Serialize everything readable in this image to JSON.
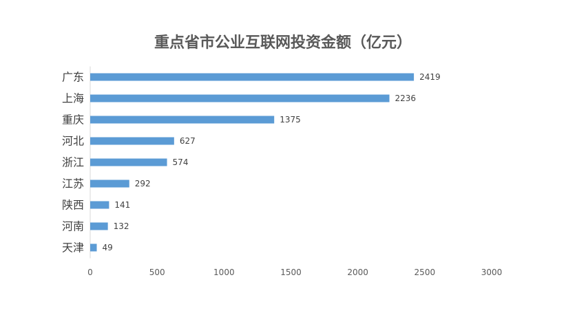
{
  "chart_data": {
    "type": "bar",
    "orientation": "horizontal",
    "title": "重点省市公业互联网投资金额（亿元）",
    "categories": [
      "广东",
      "上海",
      "重庆",
      "河北",
      "浙江",
      "江苏",
      "陕西",
      "河南",
      "天津"
    ],
    "values": [
      2419,
      2236,
      1375,
      627,
      574,
      292,
      141,
      132,
      49
    ],
    "xlim": [
      0,
      3000
    ],
    "xticks": [
      0,
      500,
      1000,
      1500,
      2000,
      2500,
      3000
    ],
    "grid": false,
    "legend": "none",
    "bar_color": "#5b9bd5"
  }
}
